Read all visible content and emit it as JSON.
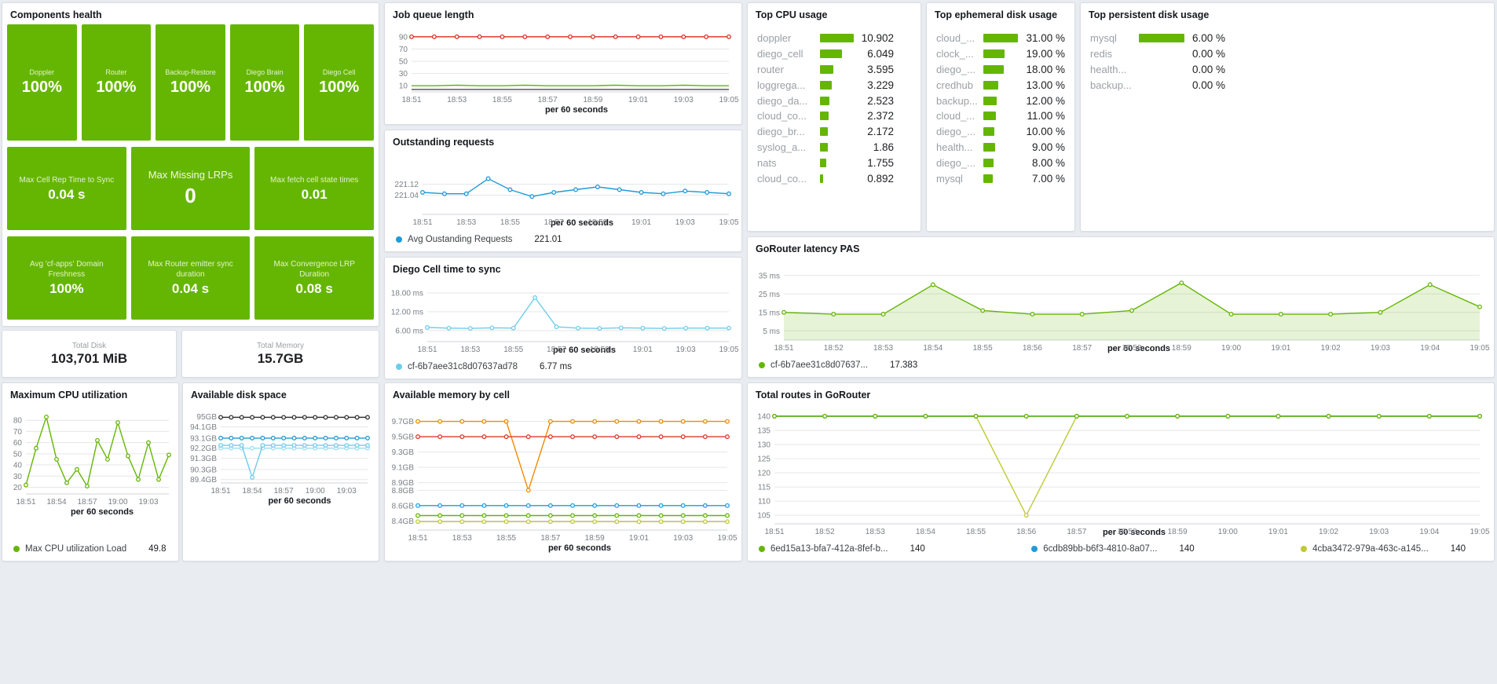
{
  "colors": {
    "green": "#65b603",
    "yellow_green": "#c0ca33",
    "red": "#db2d20",
    "mem_red": "#e23a2e",
    "blue": "#1f9bd7",
    "light_blue": "#6fcdec",
    "pale_blue": "#9adef5",
    "orange": "#f18b02",
    "dark": "#2e2e2e",
    "background": "#e9edf1"
  },
  "components_health": {
    "title": "Components health",
    "row1": [
      {
        "label": "Doppler",
        "value": "100%"
      },
      {
        "label": "Router",
        "value": "100%"
      },
      {
        "label": "Backup-Restore",
        "value": "100%"
      },
      {
        "label": "Diego Brain",
        "value": "100%"
      },
      {
        "label": "Diego Cell",
        "value": "100%"
      }
    ],
    "row2": [
      {
        "label": "Max Cell Rep Time to Sync",
        "value": "0.04 s"
      },
      {
        "label": "Max Missing LRPs",
        "value": "0"
      },
      {
        "label": "Max fetch cell state times",
        "value": "0.01"
      }
    ],
    "row3": [
      {
        "label": "Avg 'cf-apps' Domain Freshness",
        "value": "100%"
      },
      {
        "label": "Max Router emitter sync duration",
        "value": "0.04 s"
      },
      {
        "label": "Max Convergence LRP Duration",
        "value": "0.08 s"
      }
    ]
  },
  "totals": {
    "disk": {
      "label": "Total Disk",
      "value": "103,701 MiB"
    },
    "memory": {
      "label": "Total Memory",
      "value": "15.7GB"
    }
  },
  "barlists": {
    "top_cpu": {
      "title": "Top CPU usage",
      "max": 10.902,
      "rows": [
        {
          "label": "doppler",
          "value": 10.902,
          "display": "10.902"
        },
        {
          "label": "diego_cell",
          "value": 6.049,
          "display": "6.049"
        },
        {
          "label": "router",
          "value": 3.595,
          "display": "3.595"
        },
        {
          "label": "loggrega...",
          "value": 3.229,
          "display": "3.229"
        },
        {
          "label": "diego_da...",
          "value": 2.523,
          "display": "2.523"
        },
        {
          "label": "cloud_co...",
          "value": 2.372,
          "display": "2.372"
        },
        {
          "label": "diego_br...",
          "value": 2.172,
          "display": "2.172"
        },
        {
          "label": "syslog_a...",
          "value": 1.86,
          "display": "1.86"
        },
        {
          "label": "nats",
          "value": 1.755,
          "display": "1.755"
        },
        {
          "label": "cloud_co...",
          "value": 0.892,
          "display": "0.892"
        }
      ]
    },
    "top_ephemeral": {
      "title": "Top ephemeral disk usage",
      "max": 31,
      "rows": [
        {
          "label": "cloud_...",
          "value": 31,
          "display": "31.00 %"
        },
        {
          "label": "clock_...",
          "value": 19,
          "display": "19.00 %"
        },
        {
          "label": "diego_...",
          "value": 18,
          "display": "18.00 %"
        },
        {
          "label": "credhub",
          "value": 13,
          "display": "13.00 %"
        },
        {
          "label": "backup...",
          "value": 12,
          "display": "12.00 %"
        },
        {
          "label": "cloud_...",
          "value": 11,
          "display": "11.00 %"
        },
        {
          "label": "diego_...",
          "value": 10,
          "display": "10.00 %"
        },
        {
          "label": "health...",
          "value": 9,
          "display": "9.00 %"
        },
        {
          "label": "diego_...",
          "value": 8,
          "display": "8.00 %"
        },
        {
          "label": "mysql",
          "value": 7,
          "display": "7.00 %"
        }
      ]
    },
    "top_persistent": {
      "title": "Top persistent disk usage",
      "max": 6,
      "rows": [
        {
          "label": "mysql",
          "value": 6,
          "display": "6.00 %"
        },
        {
          "label": "redis",
          "value": 0,
          "display": "0.00 %"
        },
        {
          "label": "health...",
          "value": 0,
          "display": "0.00 %"
        },
        {
          "label": "backup...",
          "value": 0,
          "display": "0.00 %"
        }
      ]
    }
  },
  "charts": {
    "job_queue": {
      "title": "Job queue length",
      "type": "line",
      "xlabel": "per 60 seconds",
      "x_labels": [
        "18:51",
        "",
        "18:53",
        "",
        "18:55",
        "",
        "18:57",
        "",
        "18:59",
        "",
        "19:01",
        "",
        "19:03",
        "",
        "19:05"
      ],
      "y_min": 0,
      "y_max": 100,
      "y_ticks": [
        {
          "v": 10,
          "label": "10"
        },
        {
          "v": 30,
          "label": "30"
        },
        {
          "v": 50,
          "label": "50"
        },
        {
          "v": 70,
          "label": "70"
        },
        {
          "v": 90,
          "label": "90"
        }
      ],
      "series": [
        {
          "name": "queue-high",
          "color": "#db2d20",
          "markers": true,
          "values": [
            90,
            90,
            90,
            90,
            90,
            90,
            90,
            90,
            90,
            90,
            90,
            90,
            90,
            90,
            90
          ]
        },
        {
          "name": "queue-low-green",
          "color": "#65b603",
          "markers": false,
          "values": [
            10,
            10,
            11,
            10,
            10,
            11,
            10,
            10,
            10,
            11,
            10,
            10,
            11,
            10,
            10
          ]
        },
        {
          "name": "queue-low-dark",
          "color": "#4a4a4a",
          "markers": false,
          "values": [
            4,
            4,
            4,
            4,
            4,
            4,
            4,
            4,
            4,
            4,
            4,
            4,
            4,
            4,
            4
          ]
        }
      ]
    },
    "outstanding": {
      "title": "Outstanding requests",
      "type": "line",
      "xlabel": "per 60 seconds",
      "x_labels": [
        "18:51",
        "",
        "18:53",
        "",
        "18:55",
        "",
        "18:57",
        "",
        "18:59",
        "",
        "19:01",
        "",
        "19:03",
        "",
        "19:05"
      ],
      "y_min": 220.9,
      "y_max": 221.3,
      "y_ticks": [
        {
          "v": 221.12,
          "label": "221.12"
        },
        {
          "v": 221.04,
          "label": "221.04"
        }
      ],
      "series": [
        {
          "name": "avg-outstanding-requests",
          "color": "#1f9bd7",
          "markers": true,
          "values": [
            221.06,
            221.05,
            221.05,
            221.16,
            221.08,
            221.03,
            221.06,
            221.08,
            221.1,
            221.08,
            221.06,
            221.05,
            221.07,
            221.06,
            221.05
          ]
        }
      ],
      "legend": [
        {
          "color": "#1f9bd7",
          "label": "Avg Oustanding Requests",
          "value": "221.01"
        }
      ]
    },
    "diego_sync": {
      "title": "Diego Cell time to sync",
      "type": "line",
      "xlabel": "per 60 seconds",
      "x_labels": [
        "18:51",
        "",
        "18:53",
        "",
        "18:55",
        "",
        "18:57",
        "",
        "18:59",
        "",
        "19:01",
        "",
        "19:03",
        "",
        "19:05"
      ],
      "y_min": 2.5,
      "y_max": 20.5,
      "y_ticks": [
        {
          "v": 18,
          "label": "18.00 ms"
        },
        {
          "v": 12,
          "label": "12.00 ms"
        },
        {
          "v": 6,
          "label": "6.00 ms"
        }
      ],
      "series": [
        {
          "name": "cell-sync-time",
          "color": "#6fcdec",
          "markers": true,
          "values": [
            7,
            6.8,
            6.7,
            6.9,
            6.8,
            16.5,
            7.2,
            6.8,
            6.7,
            6.9,
            6.8,
            6.7,
            6.8,
            6.8,
            6.8
          ]
        }
      ],
      "legend": [
        {
          "color": "#6fcdec",
          "label": "cf-6b7aee31c8d07637ad78",
          "value": "6.77 ms"
        }
      ]
    },
    "gorouter_latency": {
      "title": "GoRouter latency PAS",
      "type": "area",
      "xlabel": "per 60 seconds",
      "x_labels": [
        "18:51",
        "18:52",
        "18:53",
        "18:54",
        "18:55",
        "18:56",
        "18:57",
        "18:58",
        "18:59",
        "19:00",
        "19:01",
        "19:02",
        "19:03",
        "19:04",
        "19:05"
      ],
      "y_min": 0,
      "y_max": 40,
      "y_ticks": [
        {
          "v": 35,
          "label": "35 ms"
        },
        {
          "v": 25,
          "label": "25 ms"
        },
        {
          "v": 15,
          "label": "15 ms"
        },
        {
          "v": 5,
          "label": "5 ms"
        }
      ],
      "series": [
        {
          "name": "gorouter-latency",
          "color": "#65b603",
          "markers": true,
          "fill": "rgba(101,182,3,0.16)",
          "values": [
            15,
            14,
            14,
            30,
            16,
            14,
            14,
            16,
            31,
            14,
            14,
            14,
            15,
            30,
            18
          ]
        }
      ],
      "legend": [
        {
          "color": "#65b603",
          "label": "cf-6b7aee31c8d07637...",
          "value": "17.383"
        }
      ]
    },
    "max_cpu": {
      "title": "Maximum CPU utilization",
      "type": "line",
      "xlabel": "per 60 seconds",
      "x_labels": [
        "18:51",
        "",
        "",
        "18:54",
        "",
        "",
        "18:57",
        "",
        "",
        "19:00",
        "",
        "",
        "19:03",
        "",
        ""
      ],
      "y_min": 14,
      "y_max": 90,
      "y_ticks": [
        {
          "v": 80,
          "label": "80"
        },
        {
          "v": 70,
          "label": "70"
        },
        {
          "v": 60,
          "label": "60"
        },
        {
          "v": 50,
          "label": "50"
        },
        {
          "v": 40,
          "label": "40"
        },
        {
          "v": 30,
          "label": "30"
        },
        {
          "v": 20,
          "label": "20"
        }
      ],
      "series": [
        {
          "name": "max-cpu-load",
          "color": "#65b603",
          "markers": true,
          "values": [
            22,
            55,
            83,
            45,
            24,
            36,
            21,
            62,
            45,
            78,
            48,
            27,
            60,
            27,
            49
          ]
        }
      ],
      "legend": [
        {
          "color": "#65b603",
          "label": "Max CPU utilization Load",
          "value": "49.8"
        }
      ]
    },
    "avail_disk": {
      "title": "Available disk space",
      "type": "line",
      "xlabel": "per 60 seconds",
      "x_labels": [
        "18:51",
        "",
        "",
        "18:54",
        "",
        "",
        "18:57",
        "",
        "",
        "19:00",
        "",
        "",
        "19:03",
        "",
        ""
      ],
      "y_min": 89.1,
      "y_max": 95.4,
      "y_ticks": [
        {
          "v": 95,
          "label": "95GB"
        },
        {
          "v": 94.1,
          "label": "94.1GB"
        },
        {
          "v": 93.1,
          "label": "93.1GB"
        },
        {
          "v": 92.2,
          "label": "92.2GB"
        },
        {
          "v": 91.3,
          "label": "91.3GB"
        },
        {
          "v": 90.3,
          "label": "90.3GB"
        },
        {
          "v": 89.4,
          "label": "89.4GB"
        }
      ],
      "series": [
        {
          "name": "disk-dark",
          "color": "#2e2e2e",
          "markers": true,
          "values": [
            94.95,
            94.95,
            94.95,
            94.95,
            94.95,
            94.95,
            94.95,
            94.95,
            94.95,
            94.95,
            94.95,
            94.95,
            94.95,
            94.95,
            94.95
          ]
        },
        {
          "name": "disk-blue",
          "color": "#1f9bd7",
          "markers": true,
          "values": [
            93.1,
            93.1,
            93.1,
            93.1,
            93.1,
            93.1,
            93.1,
            93.1,
            93.1,
            93.1,
            93.1,
            93.1,
            93.1,
            93.1,
            93.1
          ]
        },
        {
          "name": "disk-pale",
          "color": "#9adef5",
          "markers": true,
          "values": [
            92.2,
            92.2,
            92.2,
            92.2,
            92.2,
            92.2,
            92.2,
            92.2,
            92.2,
            92.2,
            92.2,
            92.2,
            92.2,
            92.2,
            92.2
          ]
        },
        {
          "name": "disk-cyan-dip",
          "color": "#6fcdec",
          "markers": true,
          "values": [
            92.45,
            92.45,
            92.45,
            89.6,
            92.45,
            92.45,
            92.45,
            92.45,
            92.45,
            92.45,
            92.45,
            92.45,
            92.45,
            92.45,
            92.45
          ]
        }
      ]
    },
    "avail_memory": {
      "title": "Available memory by cell",
      "type": "line",
      "xlabel": "per 60 seconds",
      "x_labels": [
        "18:51",
        "",
        "18:53",
        "",
        "18:55",
        "",
        "18:57",
        "",
        "18:59",
        "",
        "19:01",
        "",
        "19:03",
        "",
        "19:05"
      ],
      "y_min": 8.28,
      "y_max": 9.84,
      "y_ticks": [
        {
          "v": 9.7,
          "label": "9.7GB"
        },
        {
          "v": 9.5,
          "label": "9.5GB"
        },
        {
          "v": 9.3,
          "label": "9.3GB"
        },
        {
          "v": 9.1,
          "label": "9.1GB"
        },
        {
          "v": 8.9,
          "label": "8.9GB"
        },
        {
          "v": 8.8,
          "label": "8.8GB"
        },
        {
          "v": 8.6,
          "label": "8.6GB"
        },
        {
          "v": 8.4,
          "label": "8.4GB"
        }
      ],
      "series": [
        {
          "name": "mem-orange-dip",
          "color": "#f18b02",
          "markers": true,
          "values": [
            9.7,
            9.7,
            9.7,
            9.7,
            9.7,
            8.8,
            9.7,
            9.7,
            9.7,
            9.7,
            9.7,
            9.7,
            9.7,
            9.7,
            9.7
          ]
        },
        {
          "name": "mem-red",
          "color": "#e23a2e",
          "markers": true,
          "values": [
            9.5,
            9.5,
            9.5,
            9.5,
            9.5,
            9.5,
            9.5,
            9.5,
            9.5,
            9.5,
            9.5,
            9.5,
            9.5,
            9.5,
            9.5
          ]
        },
        {
          "name": "mem-blue",
          "color": "#1f9bd7",
          "markers": true,
          "values": [
            8.6,
            8.6,
            8.6,
            8.6,
            8.6,
            8.6,
            8.6,
            8.6,
            8.6,
            8.6,
            8.6,
            8.6,
            8.6,
            8.6,
            8.6
          ]
        },
        {
          "name": "mem-green",
          "color": "#65b603",
          "markers": true,
          "values": [
            8.47,
            8.47,
            8.47,
            8.47,
            8.47,
            8.47,
            8.47,
            8.47,
            8.47,
            8.47,
            8.47,
            8.47,
            8.47,
            8.47,
            8.47
          ]
        },
        {
          "name": "mem-yellowgreen",
          "color": "#c0ca33",
          "markers": true,
          "values": [
            8.39,
            8.39,
            8.39,
            8.39,
            8.39,
            8.39,
            8.39,
            8.39,
            8.39,
            8.39,
            8.39,
            8.39,
            8.39,
            8.39,
            8.39
          ]
        }
      ]
    },
    "total_routes": {
      "title": "Total routes in GoRouter",
      "type": "line",
      "xlabel": "per 60 seconds",
      "x_labels": [
        "18:51",
        "18:52",
        "18:53",
        "18:54",
        "18:55",
        "18:56",
        "18:57",
        "18:58",
        "18:59",
        "19:00",
        "19:01",
        "19:02",
        "19:03",
        "19:04",
        "19:05"
      ],
      "y_min": 102,
      "y_max": 142.5,
      "y_ticks": [
        {
          "v": 140,
          "label": "140"
        },
        {
          "v": 135,
          "label": "135"
        },
        {
          "v": 130,
          "label": "130"
        },
        {
          "v": 125,
          "label": "125"
        },
        {
          "v": 120,
          "label": "120"
        },
        {
          "v": 115,
          "label": "115"
        },
        {
          "v": 110,
          "label": "110"
        },
        {
          "v": 105,
          "label": "105"
        }
      ],
      "series": [
        {
          "name": "routes-yellowgreen-dip",
          "color": "#c0ca33",
          "markers": true,
          "values": [
            140,
            140,
            140,
            140,
            140,
            105,
            140,
            140,
            140,
            140,
            140,
            140,
            140,
            140,
            140
          ]
        },
        {
          "name": "routes-blue",
          "color": "#1f9bd7",
          "markers": true,
          "values": [
            140,
            140,
            140,
            140,
            140,
            140,
            140,
            140,
            140,
            140,
            140,
            140,
            140,
            140,
            140
          ]
        },
        {
          "name": "routes-green",
          "color": "#65b603",
          "markers": true,
          "values": [
            140,
            140,
            140,
            140,
            140,
            140,
            140,
            140,
            140,
            140,
            140,
            140,
            140,
            140,
            140
          ]
        }
      ],
      "legend": [
        {
          "color": "#65b603",
          "label": "6ed15a13-bfa7-412a-8fef-b...",
          "value": "140"
        },
        {
          "color": "#1f9bd7",
          "label": "6cdb89bb-b6f3-4810-8a07...",
          "value": "140"
        },
        {
          "color": "#c0ca33",
          "label": "4cba3472-979a-463c-a145...",
          "value": "140"
        }
      ]
    }
  }
}
